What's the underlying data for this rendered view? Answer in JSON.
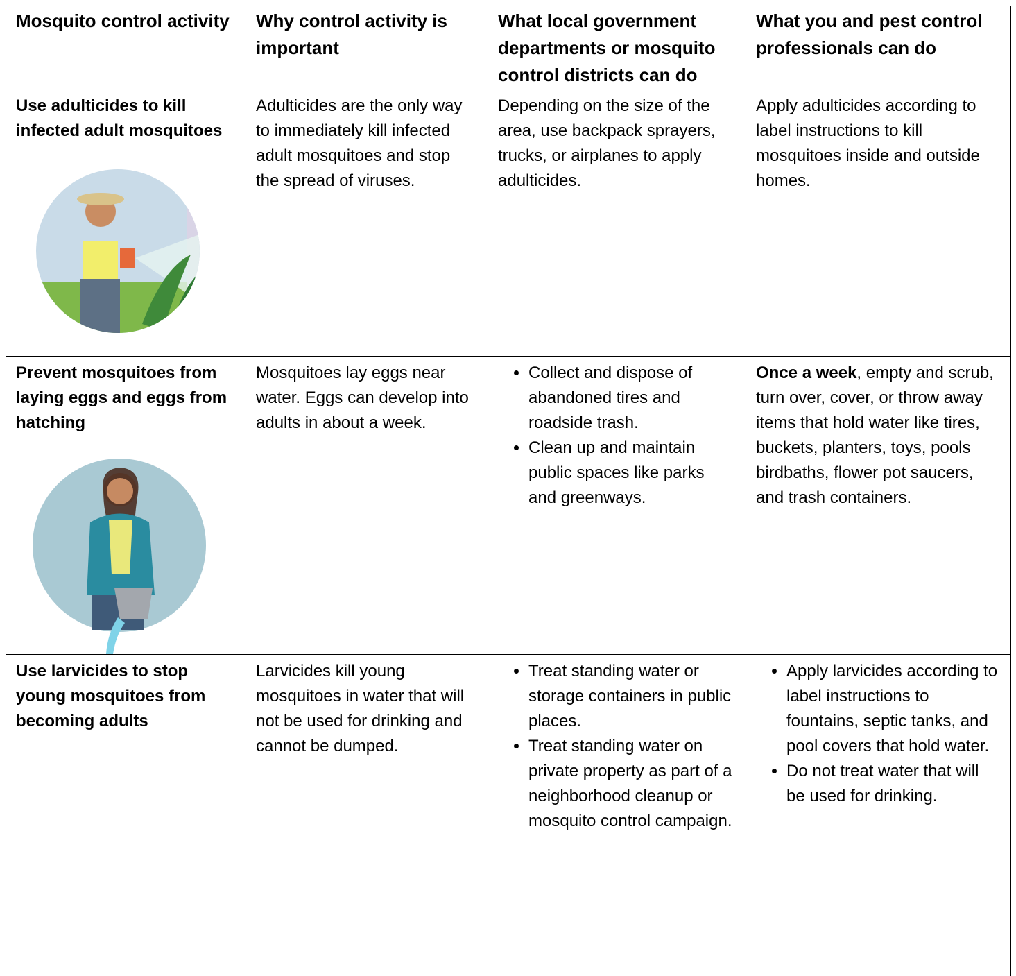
{
  "table": {
    "headers": [
      "Mosquito control activity",
      "Why control activity is important",
      "What local government departments or mosquito control districts can do",
      "What you and pest control professionals can do"
    ],
    "rows": [
      [
        "Use adulticides to kill infected adult mosquitoes",
        "Adulticides are the only way to immediately kill infected adult mosquitoes and stop the spread of viruses.",
        "Depending on the size of the area, use backpack sprayers, trucks, or airplanes to apply adulticides.",
        "Apply adulticides according to label instructions to kill mosquitoes inside and outside homes."
      ],
      [
        "Prevent mosquitoes from laying eggs and eggs from hatching",
        "Mosquitoes lay eggs near water. Eggs can develop into adults in about a week.",
        {
          "bullets": [
            "Collect and dispose of abandoned tires and roadside trash.",
            "Clean up and maintain public spaces like parks and greenways."
          ]
        },
        {
          "bold": "Once a week",
          "text": ", empty and scrub, turn over, cover, or throw away items that hold water like tires, buckets, planters, toys, pools birdbaths, flower pot saucers, and trash containers."
        }
      ],
      [
        "Use larvicides to stop young mosquitoes from becoming adults",
        "Larvicides kill young mosquitoes in water that will not be used for drinking and cannot be dumped.",
        {
          "bullets": [
            "Treat standing water or storage containers in public places.",
            "Treat standing water on private property as part of a neighborhood cleanup or mosquito control campaign."
          ]
        },
        {
          "bullets": [
            "Apply larvicides according to label instructions to fountains, septic tanks, and pool covers that hold water.",
            "Do not treat water that will be used for drinking."
          ]
        }
      ]
    ]
  }
}
